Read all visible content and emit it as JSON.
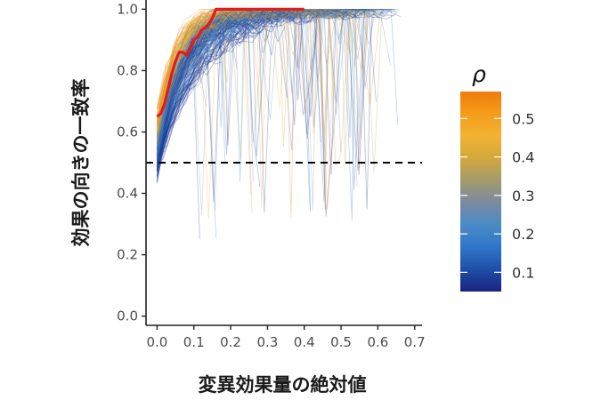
{
  "chart_data": {
    "type": "line",
    "title": "",
    "xlabel": "変異効果量の絶対値",
    "ylabel": "効果の向きの一致率",
    "xlim": [
      -0.03,
      0.72
    ],
    "ylim": [
      -0.03,
      1.03
    ],
    "x_ticks": [
      "0.0",
      "0.1",
      "0.2",
      "0.3",
      "0.4",
      "0.5",
      "0.6",
      "0.7"
    ],
    "y_ticks": [
      "0.0",
      "0.2",
      "0.4",
      "0.6",
      "0.8",
      "1.0"
    ],
    "reference_line": {
      "y": 0.5,
      "style": "dashed",
      "color": "#000000"
    },
    "highlight_series": {
      "color": "#e41a1c",
      "x": [
        0.0,
        0.01,
        0.02,
        0.03,
        0.04,
        0.05,
        0.06,
        0.07,
        0.08,
        0.09,
        0.1,
        0.11,
        0.12,
        0.13,
        0.14,
        0.15,
        0.16,
        0.2,
        0.3,
        0.4
      ],
      "y": [
        0.65,
        0.66,
        0.69,
        0.74,
        0.79,
        0.83,
        0.86,
        0.86,
        0.85,
        0.87,
        0.9,
        0.91,
        0.93,
        0.94,
        0.95,
        0.97,
        1.0,
        1.0,
        1.0,
        1.0
      ]
    },
    "background_series": {
      "description_count": 300,
      "colored_by": "ρ",
      "note": "many thin semi-transparent simulation lines colored by rho"
    },
    "legend": {
      "title": "ρ",
      "placement": "right",
      "range": [
        0.05,
        0.57
      ],
      "ticks": [
        "0.1",
        "0.2",
        "0.3",
        "0.4",
        "0.5"
      ],
      "colors": [
        "#1a237e",
        "#1e4fa8",
        "#2f76c9",
        "#4a8bc6",
        "#7b8aa0",
        "#a39a6e",
        "#d2a83c",
        "#f2b233",
        "#f59c1a",
        "#ef7c0a"
      ]
    },
    "grid": false
  }
}
